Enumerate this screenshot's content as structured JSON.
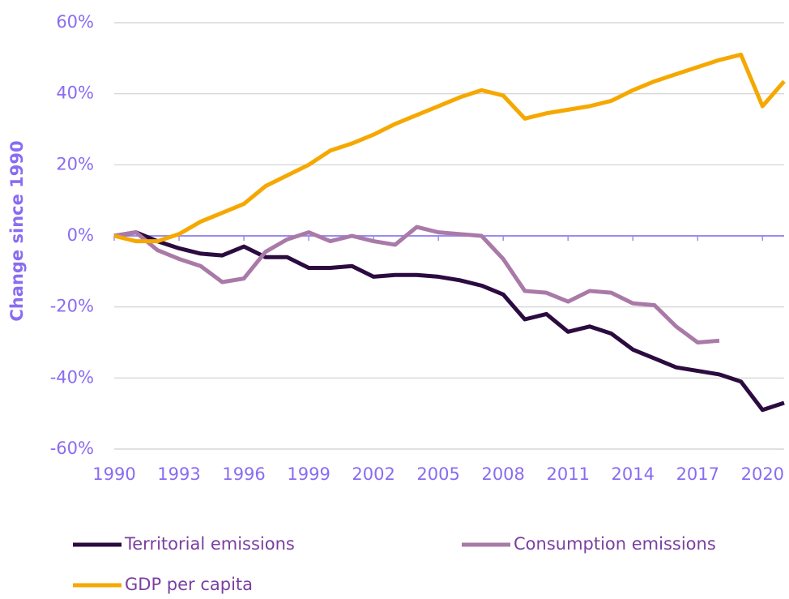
{
  "chart_data": {
    "type": "line",
    "y_label": "Change since 1990",
    "x": [
      1990,
      1991,
      1992,
      1993,
      1994,
      1995,
      1996,
      1997,
      1998,
      1999,
      2000,
      2001,
      2002,
      2003,
      2004,
      2005,
      2006,
      2007,
      2008,
      2009,
      2010,
      2011,
      2012,
      2013,
      2014,
      2015,
      2016,
      2017,
      2018,
      2019,
      2020,
      2021
    ],
    "xlim": [
      1990,
      2021
    ],
    "xticks": [
      1990,
      1993,
      1996,
      1999,
      2002,
      2005,
      2008,
      2011,
      2014,
      2017,
      2020
    ],
    "ylim": [
      -60,
      60
    ],
    "yticks": [
      {
        "value": -60,
        "label": "-60%"
      },
      {
        "value": -40,
        "label": "-40%"
      },
      {
        "value": -20,
        "label": "-20%"
      },
      {
        "value": 0,
        "label": "0%"
      },
      {
        "value": 20,
        "label": "20%"
      },
      {
        "value": 40,
        "label": "40%"
      },
      {
        "value": 60,
        "label": "60%"
      }
    ],
    "grid": true,
    "legend": "bottom",
    "series": [
      {
        "name": "Territorial emissions",
        "color": "#2b0b40",
        "values": [
          0,
          1,
          -1.5,
          -3.5,
          -5,
          -5.5,
          -3,
          -6,
          -6,
          -9,
          -9,
          -8.5,
          -11.5,
          -11,
          -11,
          -11.5,
          -12.5,
          -14,
          -16.5,
          -23.5,
          -22,
          -27,
          -25.5,
          -27.5,
          -32,
          -34.5,
          -37,
          -38,
          -39,
          -41,
          -49,
          -47
        ]
      },
      {
        "name": "Consumption emissions",
        "color": "#a97aa8",
        "values": [
          0,
          1,
          -4,
          -6.5,
          -8.5,
          -13,
          -12,
          -4.5,
          -1,
          1,
          -1.5,
          0,
          -1.5,
          -2.5,
          2.5,
          1,
          0.5,
          0,
          -6.5,
          -15.5,
          -16,
          -18.5,
          -15.5,
          -16,
          -19,
          -19.5,
          -25.5,
          -30,
          -29.5,
          null,
          null,
          null
        ]
      },
      {
        "name": "GDP per capita",
        "color": "#f5a800",
        "values": [
          0,
          -1.5,
          -1.5,
          0.5,
          4,
          6.5,
          9,
          14,
          17,
          20,
          24,
          26,
          28.5,
          31.5,
          34,
          36.5,
          39,
          41,
          39.5,
          33,
          34.5,
          35.5,
          36.5,
          38,
          41,
          43.5,
          45.5,
          47.5,
          49.5,
          51,
          36.5,
          43.5
        ]
      }
    ]
  }
}
